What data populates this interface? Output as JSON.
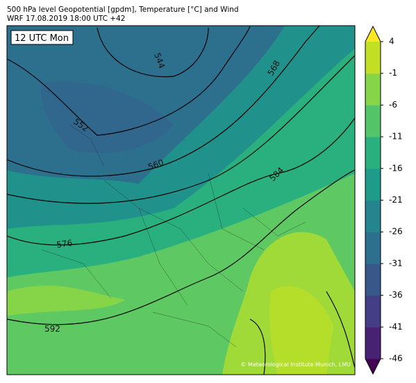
{
  "header": {
    "title_line1": "500 hPa level Geopotential [gpdm], Temperature [°C] and Wind",
    "title_line2": "WRF 17.08.2019 18:00 UTC +42"
  },
  "map": {
    "time_label": "12 UTC Mon",
    "contour_labels": [
      "544",
      "552",
      "560",
      "568",
      "576",
      "584",
      "592"
    ],
    "credit": "© Meteorological Institute Munich, LMU"
  },
  "colorbar": {
    "lim": [
      -46,
      4
    ],
    "ticks": [
      4,
      -1,
      -6,
      -11,
      -16,
      -21,
      -26,
      -31,
      -36,
      -41,
      -46
    ],
    "colors": [
      "#440154",
      "#482173",
      "#433e85",
      "#38588c",
      "#2d708e",
      "#25858e",
      "#1e9b8a",
      "#2ab07f",
      "#52c569",
      "#86d549",
      "#c2df23",
      "#fde725"
    ]
  }
}
